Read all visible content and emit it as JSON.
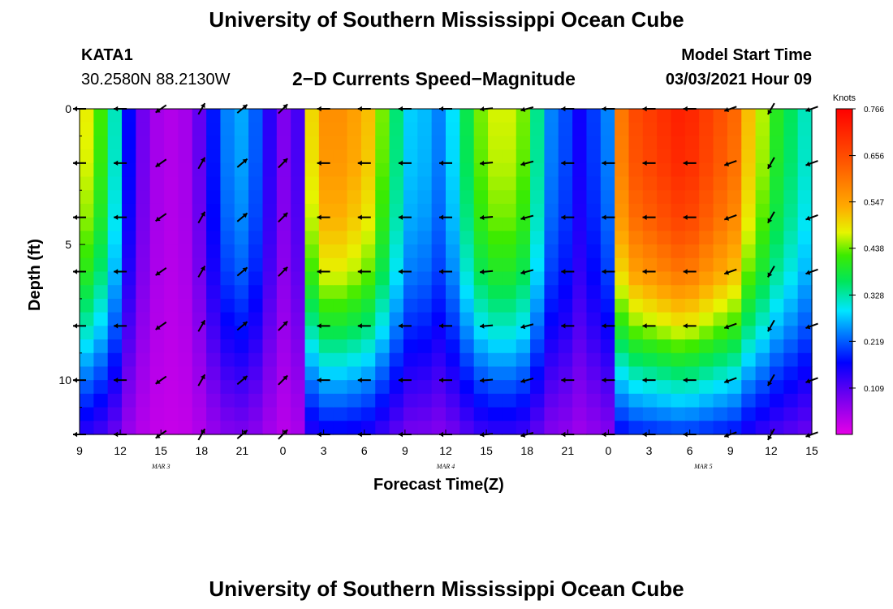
{
  "header": {
    "title": "University of Southern Mississippi Ocean Cube",
    "station": "KATA1",
    "coords": "30.2580N 88.2130W",
    "plot_title": "2−D Currents Speed−Magnitude",
    "model_start_label": "Model Start Time",
    "model_start_value": "03/03/2021 Hour 09"
  },
  "footer": {
    "title": "University of Southern Mississippi Ocean Cube"
  },
  "chart_data": {
    "type": "heatmap",
    "title": "2−D Currents Speed−Magnitude",
    "xlabel": "Forecast Time(Z)",
    "ylabel": "Depth (ft)",
    "x_ticks": [
      "9",
      "12",
      "15",
      "18",
      "21",
      "0",
      "3",
      "6",
      "9",
      "12",
      "15",
      "18",
      "21",
      "0",
      "3",
      "6",
      "9",
      "12",
      "15"
    ],
    "date_labels": [
      {
        "label": "MAR  3",
        "hour": 6
      },
      {
        "label": "MAR  4",
        "hour": 27
      },
      {
        "label": "MAR  5",
        "hour": 46
      }
    ],
    "x_range_hours": [
      0,
      54
    ],
    "y_ticks": [
      "0",
      "5",
      "10"
    ],
    "y_range": [
      0,
      12
    ],
    "colorbar": {
      "unit": "Knots",
      "ticks": [
        "0.766",
        "0.656",
        "0.547",
        "0.438",
        "0.328",
        "0.219",
        "0.109"
      ],
      "min": 0.0,
      "max": 0.766
    },
    "surface_speed_knots": [
      0.46,
      0.4,
      0.3,
      0.15,
      0.07,
      0.03,
      0.02,
      0.03,
      0.08,
      0.16,
      0.22,
      0.24,
      0.2,
      0.12,
      0.06,
      0.1,
      0.48,
      0.55,
      0.55,
      0.53,
      0.5,
      0.42,
      0.33,
      0.26,
      0.25,
      0.22,
      0.27,
      0.35,
      0.42,
      0.45,
      0.45,
      0.42,
      0.32,
      0.22,
      0.19,
      0.14,
      0.18,
      0.22,
      0.58,
      0.64,
      0.66,
      0.68,
      0.7,
      0.69,
      0.66,
      0.63,
      0.6,
      0.5,
      0.44,
      0.38,
      0.34,
      0.3
    ],
    "depth_profile": {
      "depth_ft": [
        0,
        2,
        4,
        6,
        8,
        10,
        12
      ],
      "attenuation": [
        1.0,
        0.98,
        0.93,
        0.83,
        0.66,
        0.45,
        0.25
      ]
    },
    "arrow_times_h": [
      0,
      3,
      6,
      9,
      12,
      15,
      18,
      21,
      24,
      27,
      30,
      33,
      36,
      39,
      42,
      45,
      48,
      51,
      54
    ],
    "arrow_depths_ft": [
      0,
      2,
      4,
      6,
      8,
      10,
      12
    ],
    "arrow_angles_deg": [
      180,
      180,
      215,
      60,
      40,
      45,
      180,
      180,
      180,
      180,
      185,
      195,
      180,
      180,
      180,
      180,
      200,
      240,
      200
    ]
  }
}
